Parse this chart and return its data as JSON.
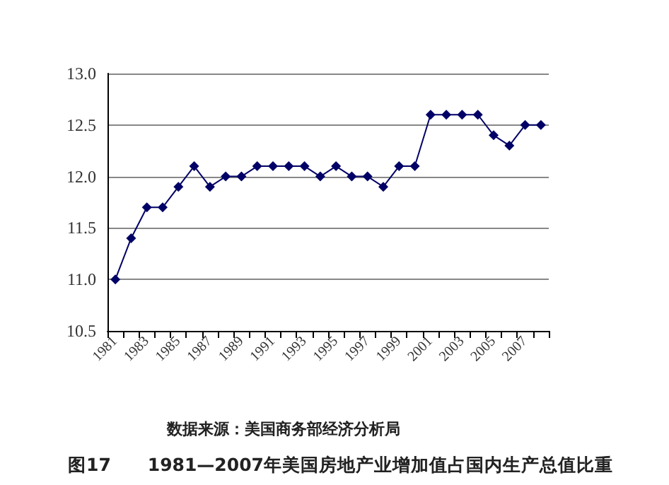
{
  "chart_data": {
    "type": "line",
    "title": "图17　　1981—2007年美国房地产业增加值占国内生产总值比重",
    "annotations": [
      "数据来源：美国商务部经济分析局"
    ],
    "categories": [
      "1981",
      null,
      "1983",
      null,
      "1985",
      null,
      "1987",
      null,
      "1989",
      null,
      "1991",
      null,
      "1993",
      null,
      "1995",
      null,
      "1997",
      null,
      "1999",
      null,
      "2001",
      null,
      "2003",
      null,
      "2005",
      null,
      "2007",
      null
    ],
    "series": [
      {
        "color": "#000066",
        "values": [
          11.0,
          11.4,
          11.7,
          11.7,
          11.9,
          12.1,
          11.9,
          12.0,
          12.0,
          12.1,
          12.1,
          12.1,
          12.1,
          12.0,
          12.1,
          12.0,
          12.0,
          11.9,
          12.1,
          12.1,
          12.6,
          12.6,
          12.6,
          12.6,
          12.4,
          12.3,
          12.5,
          12.5
        ]
      }
    ],
    "ylim": [
      10.5,
      13.0
    ],
    "yticks": [
      {
        "value": 10.5,
        "label": "10.5"
      },
      {
        "value": 11.0,
        "label": "11.0"
      },
      {
        "value": 11.5,
        "label": "11.5"
      },
      {
        "value": 12.0,
        "label": "12.0"
      },
      {
        "value": 12.5,
        "label": "12.5"
      },
      {
        "value": 13.0,
        "label": "13.0"
      }
    ],
    "grid": "y",
    "marker": "diamond",
    "line_style": "solid"
  }
}
